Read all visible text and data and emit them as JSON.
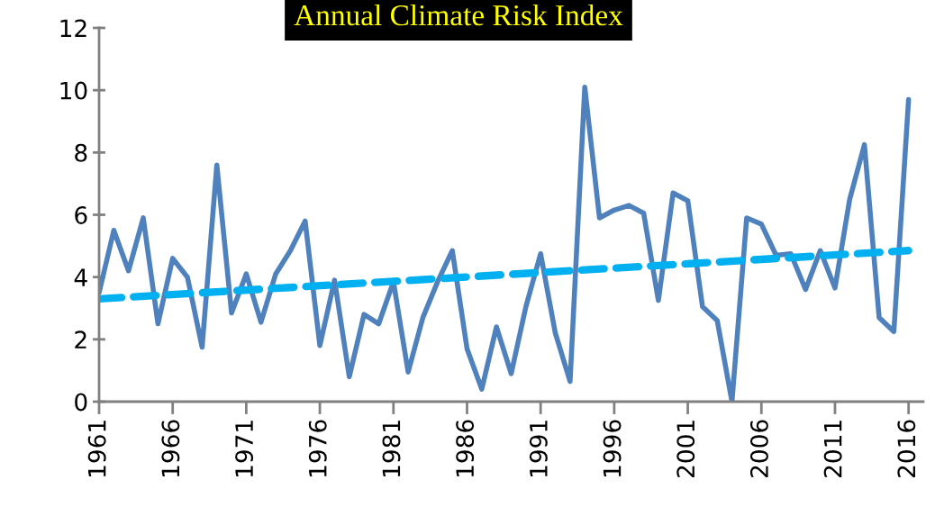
{
  "chart_data": {
    "type": "line",
    "title": "Annual Climate Risk Index",
    "x": [
      1961,
      1962,
      1963,
      1964,
      1965,
      1966,
      1967,
      1968,
      1969,
      1970,
      1971,
      1972,
      1973,
      1974,
      1975,
      1976,
      1977,
      1978,
      1979,
      1980,
      1981,
      1982,
      1983,
      1984,
      1985,
      1986,
      1987,
      1988,
      1989,
      1990,
      1991,
      1992,
      1993,
      1994,
      1995,
      1996,
      1997,
      1998,
      1999,
      2000,
      2001,
      2002,
      2003,
      2004,
      2005,
      2006,
      2007,
      2008,
      2009,
      2010,
      2011,
      2012,
      2013,
      2014,
      2015,
      2016
    ],
    "series": [
      {
        "color": "#4f81bd",
        "line_style": "solid",
        "values": [
          3.5,
          5.5,
          4.2,
          5.9,
          2.5,
          4.6,
          4.0,
          1.75,
          7.6,
          2.85,
          4.1,
          2.55,
          4.1,
          4.85,
          5.8,
          1.8,
          3.9,
          0.8,
          2.8,
          2.5,
          3.85,
          0.95,
          2.7,
          3.85,
          4.85,
          1.7,
          0.4,
          2.4,
          0.9,
          3.05,
          4.75,
          2.2,
          0.65,
          10.1,
          5.9,
          6.15,
          6.3,
          6.05,
          3.25,
          6.7,
          6.45,
          3.05,
          2.6,
          0,
          5.9,
          5.7,
          4.7,
          4.75,
          3.6,
          4.85,
          3.65,
          6.5,
          8.25,
          2.7,
          2.25,
          9.7
        ]
      },
      {
        "type": "line",
        "color": "#00b0f0",
        "line_style": "dashed",
        "x": [
          1961,
          2016
        ],
        "values": [
          3.3,
          4.85
        ]
      }
    ],
    "xlim": [
      1961,
      2017
    ],
    "xticks": [
      1961,
      1966,
      1971,
      1976,
      1981,
      1986,
      1991,
      1996,
      2001,
      2006,
      2011,
      2016
    ],
    "ylim": [
      0,
      12
    ],
    "yticks": [
      0,
      2,
      4,
      6,
      8,
      10,
      12
    ],
    "grid": false,
    "legend": false
  }
}
